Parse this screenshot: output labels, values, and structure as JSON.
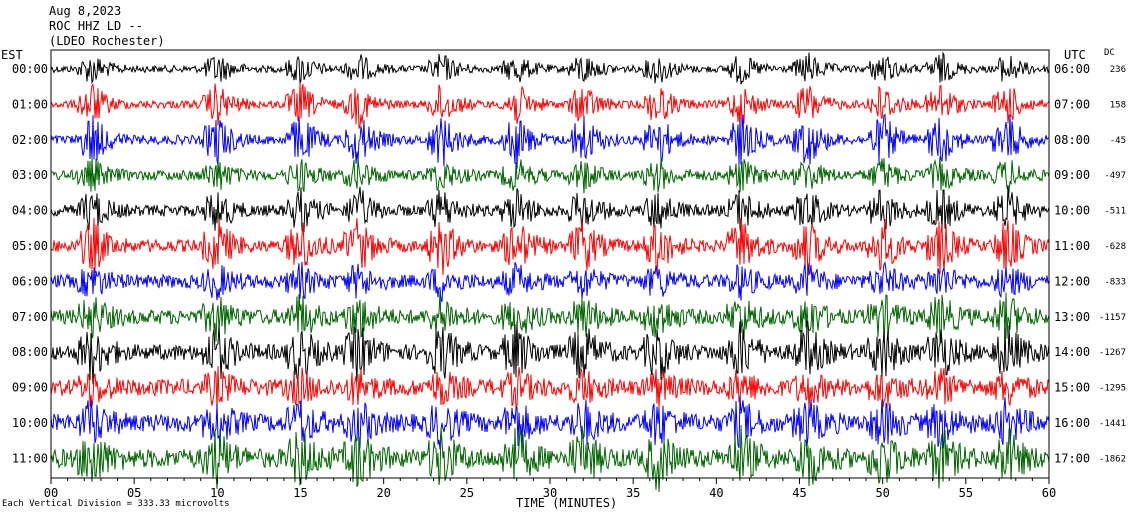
{
  "header": {
    "date": "Aug 8,2023",
    "station": "ROC HHZ LD --",
    "location": "(LDEO Rochester)"
  },
  "axis_labels": {
    "left": "EST",
    "right": "UTC",
    "dc": "DC",
    "x_title": "TIME (MINUTES)"
  },
  "footnote": "Each Vertical Division = 333.33 microvolts",
  "colors": {
    "black": "#000000",
    "red": "#ff0000",
    "blue": "#0000ff",
    "green": "#006400"
  },
  "chart_data": {
    "type": "line",
    "subtype": "seismogram-helicorder",
    "x_ticks": [
      "00",
      "05",
      "10",
      "15",
      "20",
      "25",
      "30",
      "35",
      "40",
      "45",
      "50",
      "55",
      "60"
    ],
    "xlim": [
      0,
      60
    ],
    "x_unit": "minutes",
    "color_cycle": [
      "black",
      "red",
      "blue",
      "green"
    ],
    "rows": [
      {
        "est": "00:00",
        "utc": "06:00",
        "dc": "236"
      },
      {
        "est": "01:00",
        "utc": "07:00",
        "dc": "158"
      },
      {
        "est": "02:00",
        "utc": "08:00",
        "dc": "-45"
      },
      {
        "est": "03:00",
        "utc": "09:00",
        "dc": "-497"
      },
      {
        "est": "04:00",
        "utc": "10:00",
        "dc": "-511"
      },
      {
        "est": "05:00",
        "utc": "11:00",
        "dc": "-628"
      },
      {
        "est": "06:00",
        "utc": "12:00",
        "dc": "-833"
      },
      {
        "est": "07:00",
        "utc": "13:00",
        "dc": "-1157"
      },
      {
        "est": "08:00",
        "utc": "14:00",
        "dc": "-1267"
      },
      {
        "est": "09:00",
        "utc": "15:00",
        "dc": "-1295"
      },
      {
        "est": "10:00",
        "utc": "16:00",
        "dc": "-1441"
      },
      {
        "est": "11:00",
        "utc": "17:00",
        "dc": "-1862"
      }
    ],
    "events_minutes": [
      2,
      9.5,
      14.5,
      18,
      23,
      27.5,
      31.5,
      36,
      41,
      45,
      49.5,
      53,
      57
    ],
    "grid": false
  }
}
